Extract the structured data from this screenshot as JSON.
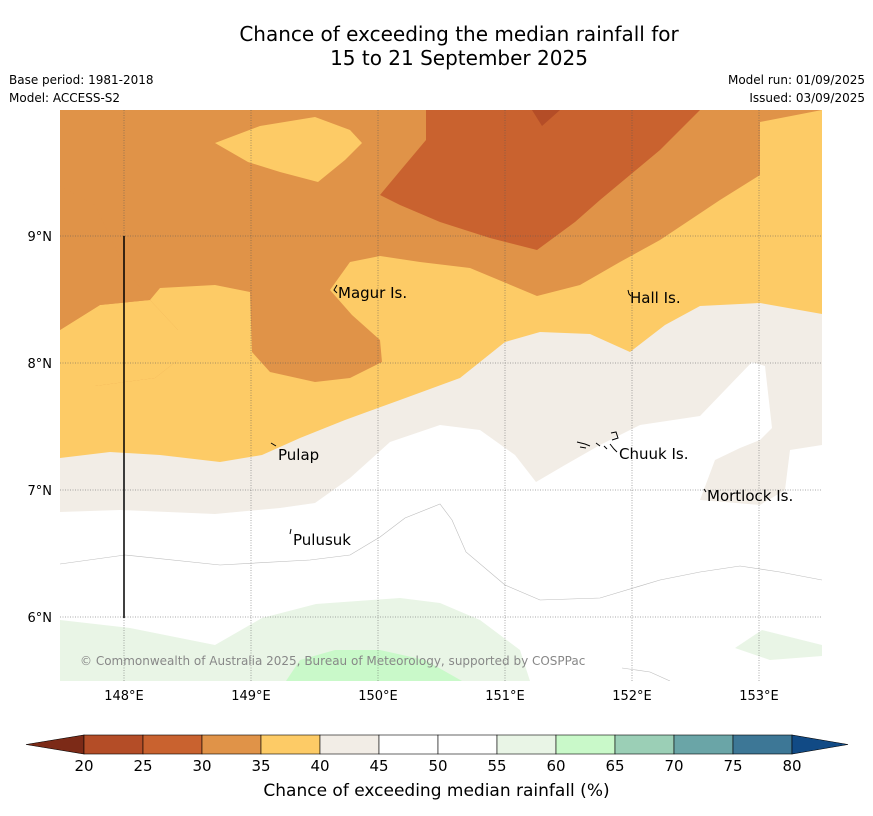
{
  "header": {
    "title_line1": "Chance of exceeding the median rainfall for",
    "title_line2": "15 to 21 September 2025",
    "base_period": "Base period: 1981-2018",
    "model": "Model: ACCESS-S2",
    "model_run": "Model run: 01/09/2025",
    "issued": "Issued: 03/09/2025"
  },
  "map": {
    "lon_ticks": [
      "148°E",
      "149°E",
      "150°E",
      "151°E",
      "152°E",
      "153°E"
    ],
    "lat_ticks": [
      "9°N",
      "8°N",
      "7°N",
      "6°N"
    ],
    "places": [
      "Magur Is.",
      "Hall Is.",
      "Pulap",
      "Chuuk Is.",
      "Mortlock Is.",
      "Pulusuk"
    ],
    "credit": "© Commonwealth of Australia 2025, Bureau of Meteorology, supported by COSPPac"
  },
  "colorbar": {
    "title": "Chance of exceeding median rainfall (%)",
    "labels": [
      "20",
      "25",
      "30",
      "35",
      "40",
      "45",
      "50",
      "55",
      "60",
      "65",
      "70",
      "75",
      "80"
    ],
    "colors": [
      "#b44d27",
      "#c9622f",
      "#e09348",
      "#fdcb66",
      "#f2ede6",
      "#ffffff",
      "#ffffff",
      "#e9f5e6",
      "#c9f9c9",
      "#9bcfb6",
      "#6aa5a7",
      "#3d7796"
    ],
    "under_color": "#7c2a17",
    "over_color": "#114a85"
  }
}
